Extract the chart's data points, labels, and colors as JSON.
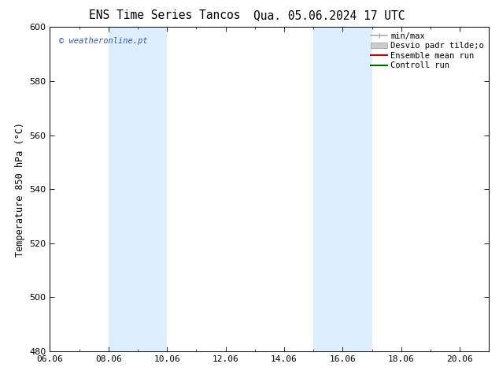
{
  "title_left": "ENS Time Series Tancos",
  "title_right": "Qua. 05.06.2024 17 UTC",
  "ylabel": "Temperature 850 hPa (°C)",
  "ylim": [
    480,
    600
  ],
  "yticks": [
    480,
    500,
    520,
    540,
    560,
    580,
    600
  ],
  "xlim_start": 0.0,
  "xlim_end": 15.0,
  "xtick_labels": [
    "06.06",
    "08.06",
    "10.06",
    "12.06",
    "14.06",
    "16.06",
    "18.06",
    "20.06"
  ],
  "xtick_positions": [
    0,
    2,
    4,
    6,
    8,
    10,
    12,
    14
  ],
  "shaded_bands": [
    {
      "x_start": 2,
      "x_end": 4
    },
    {
      "x_start": 9,
      "x_end": 11
    }
  ],
  "band_color": "#ddeeff",
  "watermark_text": "© weatheronline.pt",
  "watermark_color": "#3355bb",
  "bg_color": "#ffffff",
  "plot_bg_color": "#ffffff",
  "legend_items": [
    {
      "label": "min/max",
      "color": "#aaaaaa",
      "type": "minmax"
    },
    {
      "label": "Desvio padr tilde;o",
      "color": "#cccccc",
      "type": "fill"
    },
    {
      "label": "Ensemble mean run",
      "color": "#cc0000",
      "type": "line"
    },
    {
      "label": "Controll run",
      "color": "#006600",
      "type": "line"
    }
  ],
  "spine_color": "#000000",
  "title_fontsize": 10.5,
  "label_fontsize": 8.5,
  "tick_fontsize": 8,
  "legend_fontsize": 7.5
}
